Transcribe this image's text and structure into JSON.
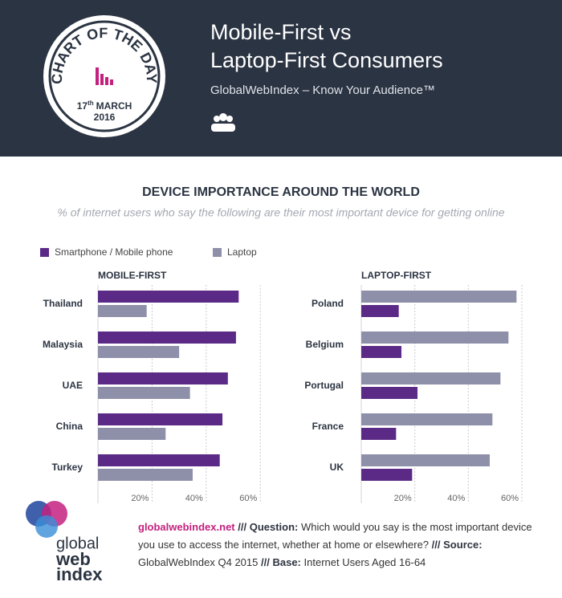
{
  "header": {
    "badge_text": "CHART OF THE DAY",
    "badge_day": "17",
    "badge_day_suffix": "th",
    "badge_month": "MARCH",
    "badge_year": "2016",
    "title_line1": "Mobile-First vs",
    "title_line2": "Laptop-First Consumers",
    "subtitle": "GlobalWebIndex – Know Your Audience™"
  },
  "section_title": "DEVICE IMPORTANCE AROUND THE WORLD",
  "section_subtitle": "% of internet users who say the following are their most important device for getting online",
  "chart_data": [
    {
      "type": "bar",
      "orientation": "horizontal",
      "title": "MOBILE-FIRST",
      "categories": [
        "Thailand",
        "Malaysia",
        "UAE",
        "China",
        "Turkey"
      ],
      "series": [
        {
          "name": "Smartphone / Mobile phone",
          "color": "#5b2a86",
          "values": [
            52,
            51,
            48,
            46,
            45
          ]
        },
        {
          "name": "Laptop",
          "color": "#8e8fa8",
          "values": [
            18,
            30,
            34,
            25,
            35
          ]
        }
      ],
      "xlim": [
        0,
        62
      ],
      "xticks": [
        {
          "value": 20,
          "label": "20%"
        },
        {
          "value": 40,
          "label": "40%"
        },
        {
          "value": 60,
          "label": "60%"
        }
      ],
      "grid": true
    },
    {
      "type": "bar",
      "orientation": "horizontal",
      "title": "LAPTOP-FIRST",
      "categories": [
        "Poland",
        "Belgium",
        "Portugal",
        "France",
        "UK"
      ],
      "series": [
        {
          "name": "Laptop",
          "color": "#8e8fa8",
          "values": [
            58,
            55,
            52,
            49,
            48
          ]
        },
        {
          "name": "Smartphone / Mobile phone",
          "color": "#5b2a86",
          "values": [
            14,
            15,
            21,
            13,
            19
          ]
        }
      ],
      "xlim": [
        0,
        60
      ],
      "xticks": [
        {
          "value": 20,
          "label": "20%"
        },
        {
          "value": 40,
          "label": "40%"
        },
        {
          "value": 60,
          "label": "60%"
        }
      ],
      "grid": true
    }
  ],
  "footer": {
    "logo": [
      "global",
      "web",
      "index"
    ],
    "site": "globalwebindex.net",
    "sep": "///",
    "question_label": "Question:",
    "question": "Which would you say is the most important device you use to access the internet, whether at home or elsewhere?",
    "source_label": "Source:",
    "source": "GlobalWebIndex Q4 2015",
    "base_label": "Base:",
    "base": "Internet Users Aged 16-64"
  }
}
